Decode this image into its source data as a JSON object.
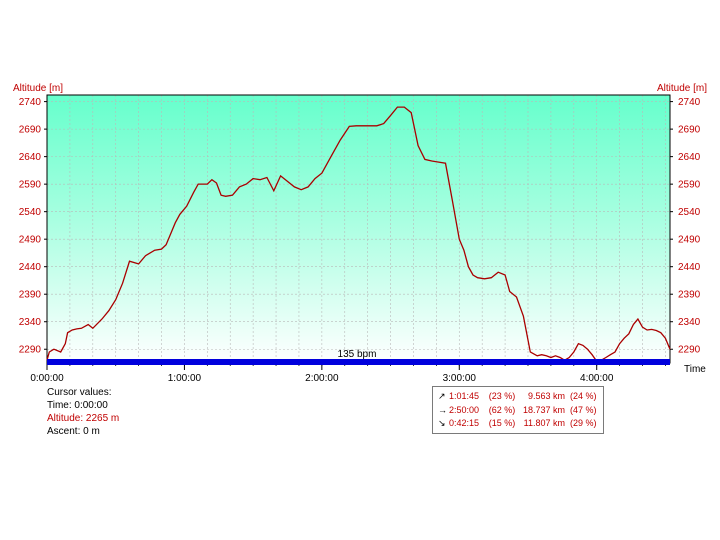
{
  "chart_data": {
    "type": "area",
    "y_axis_label_left": "Altitude [m]",
    "y_axis_label_right": "Altitude [m]",
    "x_axis_label": "Time",
    "y_ticks": [
      2290,
      2340,
      2390,
      2440,
      2490,
      2540,
      2590,
      2640,
      2690,
      2740
    ],
    "y_tick_labels": [
      "2290",
      "2340",
      "2390",
      "2440",
      "2490",
      "2540",
      "2590",
      "2640",
      "2690",
      "2740"
    ],
    "ylim": [
      2265,
      2752
    ],
    "x_ticks_min": [
      0,
      60,
      120,
      180,
      240
    ],
    "x_tick_labels": [
      "0:00:00",
      "1:00:00",
      "2:00:00",
      "3:00:00",
      "4:00:00"
    ],
    "xlim_min": [
      0,
      272
    ],
    "grid": true,
    "background_gradient": [
      "#66ffcc",
      "#ffffff"
    ],
    "line_color": "#aa0000",
    "band_label": "135 bpm",
    "band_color": "#0000dd",
    "series": [
      {
        "x_min": [
          0,
          1,
          3,
          6,
          8,
          9,
          11,
          13,
          15,
          18,
          20,
          24,
          27,
          30,
          33,
          36,
          40,
          43,
          47,
          50,
          52,
          54,
          56,
          58,
          61,
          64,
          66,
          68,
          70,
          72,
          74,
          76,
          78,
          81,
          84,
          87,
          90,
          93,
          96,
          99,
          102,
          105,
          108,
          111,
          114,
          117,
          120,
          124,
          128,
          132,
          135,
          138,
          141,
          144,
          147,
          150,
          153,
          156,
          159,
          162,
          165,
          168,
          171,
          174,
          177,
          180,
          182,
          184,
          186,
          188,
          191,
          194,
          197,
          200,
          202,
          205,
          208,
          211,
          214,
          216,
          218,
          220,
          222,
          224,
          226,
          228,
          230,
          232,
          234,
          236,
          238,
          240,
          242,
          244,
          246,
          248,
          250,
          252,
          254,
          256,
          258,
          260,
          262,
          264,
          266,
          268,
          270,
          272
        ],
        "altitude_m": [
          2270,
          2285,
          2290,
          2285,
          2300,
          2320,
          2325,
          2327,
          2328,
          2335,
          2328,
          2345,
          2360,
          2380,
          2410,
          2450,
          2445,
          2460,
          2470,
          2472,
          2480,
          2500,
          2520,
          2535,
          2550,
          2575,
          2590,
          2590,
          2590,
          2598,
          2592,
          2570,
          2568,
          2570,
          2585,
          2590,
          2600,
          2598,
          2602,
          2578,
          2605,
          2595,
          2585,
          2580,
          2585,
          2600,
          2610,
          2640,
          2670,
          2695,
          2696,
          2696,
          2696,
          2696,
          2700,
          2715,
          2730,
          2730,
          2720,
          2660,
          2635,
          2632,
          2630,
          2628,
          2560,
          2490,
          2470,
          2440,
          2425,
          2420,
          2418,
          2420,
          2430,
          2425,
          2395,
          2385,
          2350,
          2285,
          2278,
          2280,
          2278,
          2275,
          2278,
          2275,
          2270,
          2275,
          2285,
          2300,
          2297,
          2290,
          2280,
          2268,
          2270,
          2275,
          2280,
          2285,
          2300,
          2310,
          2318,
          2335,
          2345,
          2330,
          2325,
          2326,
          2324,
          2320,
          2310,
          2290
        ]
      }
    ]
  },
  "cursor": {
    "title": "Cursor values:",
    "time": "Time: 0:00:00",
    "altitude": "Altitude: 2265 m",
    "ascent": "Ascent: 0 m"
  },
  "stats": [
    {
      "icon": "arrow-up-right-icon",
      "arrow": "↗",
      "time": "1:01:45",
      "time_pct": "(23 %)",
      "dist": "9.563 km",
      "dist_pct": "(24 %)"
    },
    {
      "icon": "arrow-right-icon",
      "arrow": "→",
      "time": "2:50:00",
      "time_pct": "(62 %)",
      "dist": "18.737 km",
      "dist_pct": "(47 %)"
    },
    {
      "icon": "arrow-down-right-icon",
      "arrow": "↘",
      "time": "0:42:15",
      "time_pct": "(15 %)",
      "dist": "11.807 km",
      "dist_pct": "(29 %)"
    }
  ]
}
